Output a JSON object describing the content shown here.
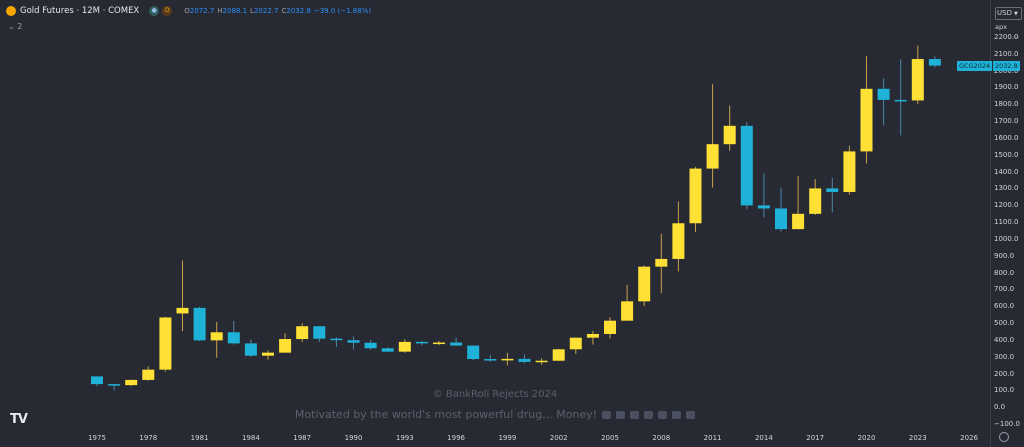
{
  "legend": {
    "title": "Gold Futures · 12M · COMEX",
    "badge1": "D",
    "open_key": "O",
    "open": "2072.7",
    "high_key": "H",
    "high": "2088.1",
    "low_key": "L",
    "low": "2022.7",
    "close_key": "C",
    "close": "2032.8",
    "change": "−39.0 (−1.88%)",
    "collapse": "⌄ 2"
  },
  "axis_panel": {
    "currency": "USD",
    "mode": "арх",
    "menu": "⋯"
  },
  "current_price": {
    "symbol": "GCG2024",
    "price": "2032.8"
  },
  "watermark": {
    "line1": "© BankRoll Rejects 2024",
    "line2": "Motivated by the world's most powerful drug... Money!"
  },
  "logo": "TV",
  "colors": {
    "up": "#ffe135",
    "down": "#1fb2d8",
    "background": "#272a33"
  },
  "chart_data": {
    "type": "candlestick",
    "title": "Gold Futures · 12M · COMEX",
    "x_ticks": [
      "1975",
      "1978",
      "1981",
      "1984",
      "1987",
      "1990",
      "1993",
      "1996",
      "1999",
      "2002",
      "2005",
      "2008",
      "2011",
      "2014",
      "2017",
      "2020",
      "2023",
      "2026"
    ],
    "y_ticks": [
      "2200.0",
      "2100.0",
      "2000.0",
      "1900.0",
      "1800.0",
      "1700.0",
      "1600.0",
      "1500.0",
      "1400.0",
      "1300.0",
      "1200.0",
      "1100.0",
      "1000.0",
      "900.0",
      "800.0",
      "700.0",
      "600.0",
      "500.0",
      "400.0",
      "300.0",
      "200.0",
      "100.0",
      "0.0",
      "−100.0"
    ],
    "ylim": [
      -100,
      2200
    ],
    "grid": false,
    "candles": [
      {
        "year": 1975,
        "o": 186,
        "h": 186,
        "l": 128,
        "c": 140
      },
      {
        "year": 1976,
        "o": 140,
        "h": 141,
        "l": 103,
        "c": 134
      },
      {
        "year": 1977,
        "o": 134,
        "h": 167,
        "l": 128,
        "c": 165
      },
      {
        "year": 1978,
        "o": 165,
        "h": 245,
        "l": 160,
        "c": 226
      },
      {
        "year": 1979,
        "o": 226,
        "h": 540,
        "l": 215,
        "c": 536
      },
      {
        "year": 1980,
        "o": 560,
        "h": 875,
        "l": 455,
        "c": 593
      },
      {
        "year": 1981,
        "o": 593,
        "h": 599,
        "l": 395,
        "c": 400
      },
      {
        "year": 1982,
        "o": 400,
        "h": 510,
        "l": 297,
        "c": 448
      },
      {
        "year": 1983,
        "o": 448,
        "h": 515,
        "l": 375,
        "c": 382
      },
      {
        "year": 1984,
        "o": 382,
        "h": 406,
        "l": 303,
        "c": 309
      },
      {
        "year": 1985,
        "o": 309,
        "h": 340,
        "l": 285,
        "c": 327
      },
      {
        "year": 1986,
        "o": 327,
        "h": 442,
        "l": 326,
        "c": 408
      },
      {
        "year": 1987,
        "o": 408,
        "h": 502,
        "l": 390,
        "c": 484
      },
      {
        "year": 1988,
        "o": 484,
        "h": 485,
        "l": 390,
        "c": 410
      },
      {
        "year": 1989,
        "o": 410,
        "h": 418,
        "l": 360,
        "c": 401
      },
      {
        "year": 1990,
        "o": 401,
        "h": 424,
        "l": 345,
        "c": 386
      },
      {
        "year": 1991,
        "o": 386,
        "h": 403,
        "l": 344,
        "c": 353
      },
      {
        "year": 1992,
        "o": 353,
        "h": 359,
        "l": 330,
        "c": 333
      },
      {
        "year": 1993,
        "o": 333,
        "h": 407,
        "l": 326,
        "c": 391
      },
      {
        "year": 1994,
        "o": 391,
        "h": 397,
        "l": 370,
        "c": 383
      },
      {
        "year": 1995,
        "o": 383,
        "h": 397,
        "l": 372,
        "c": 387
      },
      {
        "year": 1996,
        "o": 387,
        "h": 416,
        "l": 367,
        "c": 369
      },
      {
        "year": 1997,
        "o": 369,
        "h": 367,
        "l": 283,
        "c": 289
      },
      {
        "year": 1998,
        "o": 289,
        "h": 313,
        "l": 273,
        "c": 288
      },
      {
        "year": 1999,
        "o": 288,
        "h": 326,
        "l": 252,
        "c": 290
      },
      {
        "year": 2000,
        "o": 290,
        "h": 316,
        "l": 263,
        "c": 272
      },
      {
        "year": 2001,
        "o": 272,
        "h": 294,
        "l": 255,
        "c": 279
      },
      {
        "year": 2002,
        "o": 279,
        "h": 349,
        "l": 277,
        "c": 347
      },
      {
        "year": 2003,
        "o": 347,
        "h": 417,
        "l": 319,
        "c": 416
      },
      {
        "year": 2004,
        "o": 416,
        "h": 456,
        "l": 375,
        "c": 438
      },
      {
        "year": 2005,
        "o": 438,
        "h": 538,
        "l": 411,
        "c": 517
      },
      {
        "year": 2006,
        "o": 517,
        "h": 730,
        "l": 524,
        "c": 632
      },
      {
        "year": 2007,
        "o": 632,
        "h": 845,
        "l": 603,
        "c": 838
      },
      {
        "year": 2008,
        "o": 838,
        "h": 1033,
        "l": 681,
        "c": 884
      },
      {
        "year": 2009,
        "o": 884,
        "h": 1226,
        "l": 810,
        "c": 1096
      },
      {
        "year": 2010,
        "o": 1096,
        "h": 1431,
        "l": 1045,
        "c": 1421
      },
      {
        "year": 2011,
        "o": 1421,
        "h": 1923,
        "l": 1308,
        "c": 1566
      },
      {
        "year": 2012,
        "o": 1566,
        "h": 1796,
        "l": 1527,
        "c": 1675
      },
      {
        "year": 2013,
        "o": 1675,
        "h": 1697,
        "l": 1180,
        "c": 1202
      },
      {
        "year": 2014,
        "o": 1202,
        "h": 1392,
        "l": 1131,
        "c": 1184
      },
      {
        "year": 2015,
        "o": 1184,
        "h": 1307,
        "l": 1046,
        "c": 1061
      },
      {
        "year": 2016,
        "o": 1061,
        "h": 1377,
        "l": 1061,
        "c": 1152
      },
      {
        "year": 2017,
        "o": 1152,
        "h": 1358,
        "l": 1146,
        "c": 1303
      },
      {
        "year": 2018,
        "o": 1303,
        "h": 1366,
        "l": 1160,
        "c": 1282
      },
      {
        "year": 2019,
        "o": 1282,
        "h": 1557,
        "l": 1266,
        "c": 1523
      },
      {
        "year": 2020,
        "o": 1523,
        "h": 2089,
        "l": 1451,
        "c": 1895
      },
      {
        "year": 2021,
        "o": 1895,
        "h": 1959,
        "l": 1677,
        "c": 1829
      },
      {
        "year": 2022,
        "o": 1829,
        "h": 2070,
        "l": 1618,
        "c": 1826
      },
      {
        "year": 2023,
        "o": 1826,
        "h": 2152,
        "l": 1805,
        "c": 2072
      },
      {
        "year": 2024,
        "o": 2072,
        "h": 2088,
        "l": 2022,
        "c": 2033
      }
    ]
  }
}
